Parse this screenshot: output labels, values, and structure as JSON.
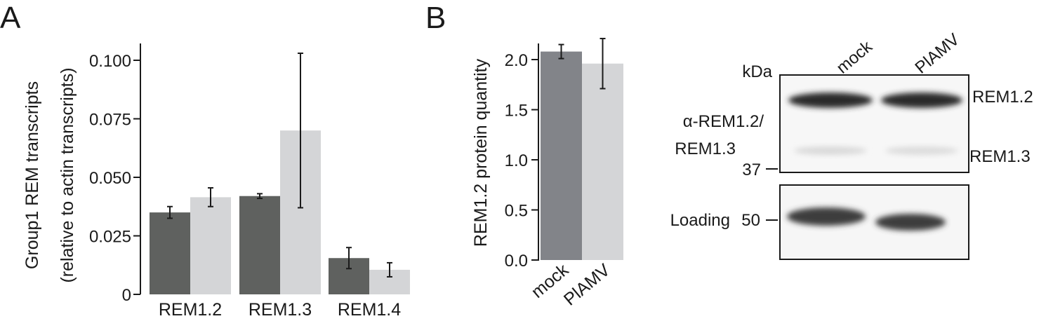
{
  "figure": {
    "panel_a": "A",
    "panel_b": "B"
  },
  "colors": {
    "dark_bar": "#5f615f",
    "light_bar": "#d4d5d7",
    "mock_bar": "#828489",
    "axis": "#1a1a1a"
  },
  "chart_data": [
    {
      "type": "bar",
      "ylabel_line1": "Group1 REM transcripts",
      "ylabel_line2": "(relative to actin transcripts)",
      "categories": [
        "REM1.2",
        "REM1.3",
        "REM1.4"
      ],
      "ylim": [
        0,
        0.105
      ],
      "yticks": [
        0,
        0.025,
        0.05,
        0.075,
        0.1
      ],
      "ytick_labels": [
        "0",
        "0.025",
        "0.050",
        "0.075",
        "0.100"
      ],
      "series": [
        {
          "values": [
            0.035,
            0.042,
            0.0155
          ],
          "errors": [
            0.0025,
            0.001,
            0.0045
          ],
          "color": "#5f615f"
        },
        {
          "values": [
            0.0415,
            0.07,
            0.0105
          ],
          "errors": [
            0.004,
            0.033,
            0.003
          ],
          "color": "#d4d5d7"
        }
      ],
      "grid": false
    },
    {
      "type": "bar",
      "ylabel": "REM1.2 protein quantity",
      "categories": [
        "mock",
        "PlAMV"
      ],
      "values": [
        2.08,
        1.96
      ],
      "errors": [
        0.07,
        0.25
      ],
      "colors": [
        "#828489",
        "#d4d5d7"
      ],
      "ylim": [
        0,
        2.2
      ],
      "yticks": [
        0,
        0.5,
        1.0,
        1.5,
        2.0
      ],
      "ytick_labels": [
        "0.0",
        "0.5",
        "1.0",
        "1.5",
        "2.0"
      ],
      "grid": false
    }
  ],
  "blot": {
    "lanes": [
      "mock",
      "PlAMV"
    ],
    "kda_label": "kDa",
    "antibody_line1": "α-REM1.2/",
    "antibody_line2": "REM1.3",
    "marker_37": "37",
    "band_rem12": "REM1.2",
    "band_rem13": "REM1.3",
    "loading_label": "Loading",
    "marker_50": "50"
  }
}
